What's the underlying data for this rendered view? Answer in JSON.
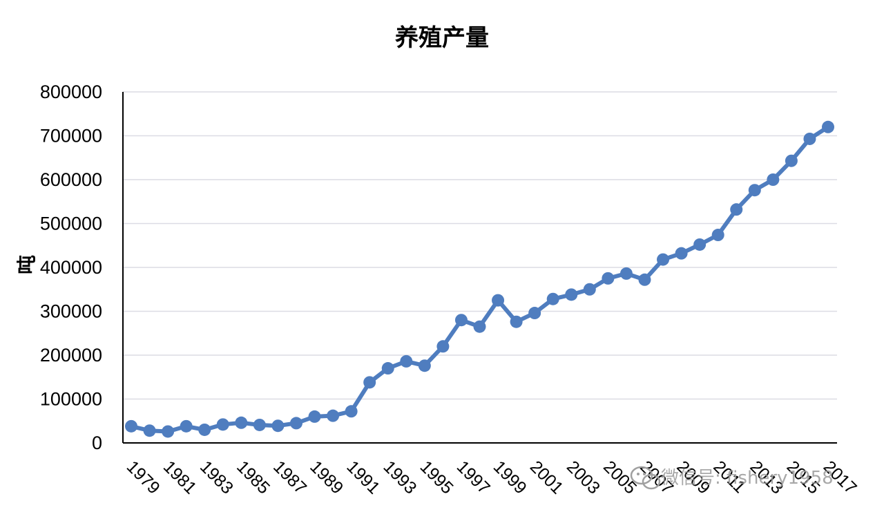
{
  "chart_data": {
    "type": "line",
    "title": "养殖产量",
    "ylabel": "吨",
    "xlabel": "",
    "ylim": [
      0,
      800000
    ],
    "yticks": [
      "0",
      "100000",
      "200000",
      "300000",
      "400000",
      "500000",
      "600000",
      "700000",
      "800000"
    ],
    "grid": true,
    "color": "#4f7dbf",
    "x": [
      1979,
      1980,
      1981,
      1982,
      1983,
      1984,
      1985,
      1986,
      1987,
      1988,
      1989,
      1990,
      1991,
      1992,
      1993,
      1994,
      1995,
      1996,
      1997,
      1998,
      1999,
      2000,
      2001,
      2002,
      2003,
      2004,
      2005,
      2006,
      2007,
      2008,
      2009,
      2010,
      2011,
      2012,
      2013,
      2014,
      2015,
      2016,
      2017
    ],
    "xticks": [
      "1979",
      "1981",
      "1983",
      "1985",
      "1987",
      "1989",
      "1991",
      "1993",
      "1995",
      "1997",
      "1999",
      "2001",
      "2003",
      "2005",
      "2007",
      "2009",
      "2011",
      "2013",
      "2015",
      "2017"
    ],
    "values": [
      38000,
      28000,
      26000,
      38000,
      30000,
      42000,
      46000,
      41000,
      39000,
      45000,
      60000,
      62000,
      72000,
      138000,
      170000,
      186000,
      176000,
      220000,
      280000,
      265000,
      325000,
      276000,
      296000,
      328000,
      338000,
      350000,
      375000,
      386000,
      372000,
      418000,
      432000,
      452000,
      474000,
      532000,
      576000,
      600000,
      643000,
      693000,
      720000
    ]
  },
  "watermark": {
    "text": "微信号: fishery1958",
    "icon": "wechat-icon"
  }
}
